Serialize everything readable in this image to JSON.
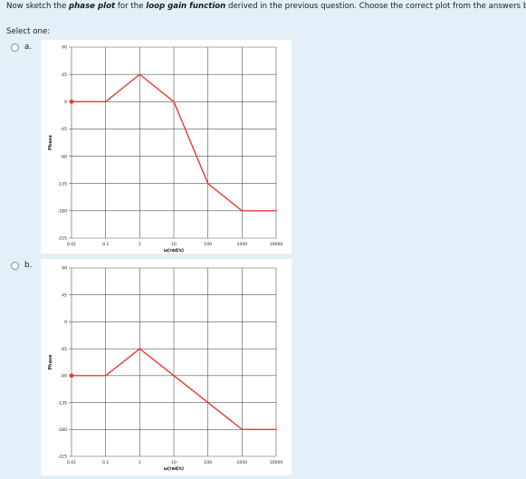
{
  "question": {
    "pre": "Now sketch the ",
    "em1": "phase plot",
    "mid1": " for the ",
    "em2": "loop gain function",
    "post": " derived in the previous question. Choose the correct plot from the answers below."
  },
  "select_label": "Select one:",
  "options": [
    {
      "letter": "a.",
      "chart_data": {
        "type": "line",
        "xscale": "log",
        "xlabel": "ω(rad/s)",
        "ylabel": "Phase",
        "xlim": [
          0.01,
          10000
        ],
        "ylim": [
          -225,
          90
        ],
        "x_ticks": [
          "0.01",
          "0.1",
          "1",
          "10",
          "100",
          "1000",
          "10000"
        ],
        "y_ticks": [
          "90",
          "45",
          "0",
          "-45",
          "-90",
          "-135",
          "-180",
          "-225"
        ],
        "grid": true,
        "series": [
          {
            "color": "#e53935",
            "x": [
              0.01,
              0.1,
              1,
              10,
              100,
              1000,
              10000
            ],
            "y": [
              0,
              0,
              45,
              0,
              -135,
              -180,
              -180
            ]
          }
        ]
      }
    },
    {
      "letter": "b.",
      "chart_data": {
        "type": "line",
        "xscale": "log",
        "xlabel": "ω(rad/s)",
        "ylabel": "Phase",
        "xlim": [
          0.01,
          10000
        ],
        "ylim": [
          -225,
          90
        ],
        "x_ticks": [
          "0.01",
          "0.1",
          "1",
          "10",
          "100",
          "1000",
          "10000"
        ],
        "y_ticks": [
          "90",
          "45",
          "0",
          "-45",
          "-90",
          "-135",
          "-180",
          "-225"
        ],
        "grid": true,
        "series": [
          {
            "color": "#e53935",
            "x": [
              0.01,
              0.1,
              1,
              10,
              100,
              1000,
              10000
            ],
            "y": [
              -90,
              -90,
              -45,
              -90,
              -135,
              -180,
              -180
            ]
          }
        ]
      }
    }
  ]
}
